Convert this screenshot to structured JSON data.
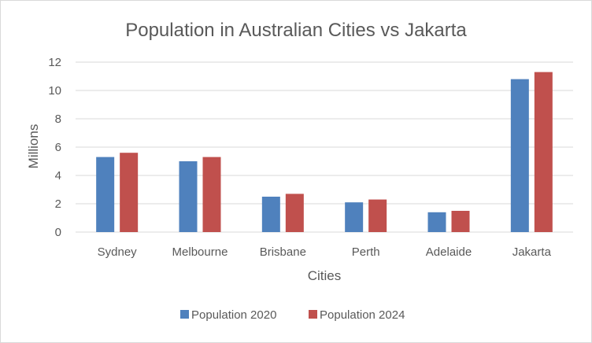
{
  "chart_data": {
    "type": "bar",
    "title": "Population in Australian Cities vs Jakarta",
    "xlabel": "Cities",
    "ylabel": "Millions",
    "categories": [
      "Sydney",
      "Melbourne",
      "Brisbane",
      "Perth",
      "Adelaide",
      "Jakarta"
    ],
    "series": [
      {
        "name": "Population 2020",
        "color": "#4f81bd",
        "values": [
          5.3,
          5.0,
          2.5,
          2.1,
          1.4,
          10.8
        ]
      },
      {
        "name": "Population 2024",
        "color": "#c0504d",
        "values": [
          5.6,
          5.3,
          2.7,
          2.3,
          1.5,
          11.3
        ]
      }
    ],
    "ylim": [
      0,
      12
    ],
    "yticks": [
      "0",
      "2",
      "4",
      "6",
      "8",
      "10",
      "12"
    ],
    "grid": true,
    "legend_position": "bottom"
  }
}
